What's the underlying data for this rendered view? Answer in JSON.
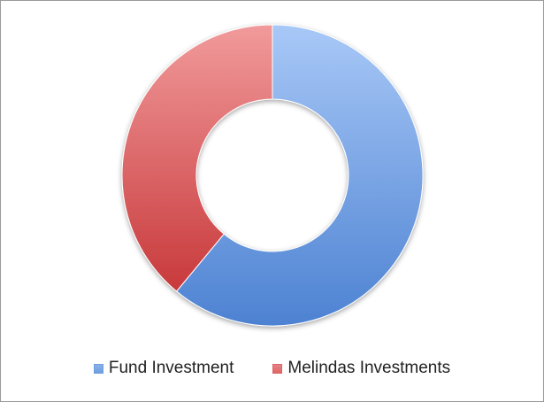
{
  "chart_data": {
    "type": "pie",
    "variant": "donut",
    "title": "",
    "categories": [
      "Fund Investment",
      "Melindas Investments"
    ],
    "values": [
      61,
      39
    ],
    "colors": {
      "Fund Investment": "#6e9ee0",
      "Melindas Investments": "#df6466"
    },
    "legend": {
      "position": "bottom",
      "entries": [
        "Fund Investment",
        "Melindas Investments"
      ]
    }
  }
}
